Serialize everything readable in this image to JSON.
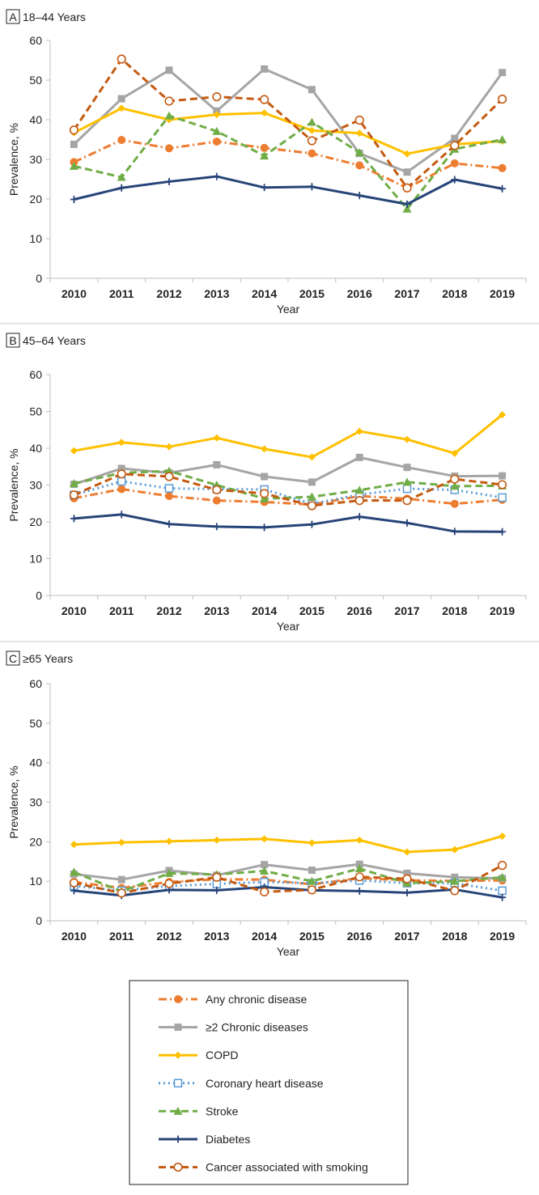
{
  "chart_data": [
    {
      "type": "line",
      "panel_letter": "A",
      "title": "18–44 Years",
      "xlabel": "Year",
      "ylabel": "Prevalence, %",
      "ylim": [
        0,
        60
      ],
      "yticks": [
        0,
        10,
        20,
        30,
        40,
        50,
        60
      ],
      "grid": false,
      "categories": [
        "2010",
        "2011",
        "2012",
        "2013",
        "2014",
        "2015",
        "2016",
        "2017",
        "2018",
        "2019"
      ],
      "series": [
        {
          "key": "any",
          "name": "Any chronic disease",
          "values": [
            29.3,
            34.9,
            32.8,
            34.5,
            32.9,
            31.5,
            28.5,
            22.8,
            29.0,
            27.8
          ]
        },
        {
          "key": "two",
          "name": "≥2 Chronic diseases",
          "values": [
            33.8,
            45.3,
            52.5,
            42.2,
            52.8,
            47.6,
            31.5,
            26.8,
            35.3,
            51.9
          ]
        },
        {
          "key": "copd",
          "name": "COPD",
          "values": [
            36.7,
            42.9,
            40.0,
            41.3,
            41.7,
            37.3,
            36.6,
            31.4,
            33.8,
            34.6
          ]
        },
        {
          "key": "stroke",
          "name": "Stroke",
          "values": [
            28.3,
            25.5,
            41.0,
            37.1,
            30.9,
            39.4,
            31.7,
            17.5,
            32.6,
            35.0
          ]
        },
        {
          "key": "diabetes",
          "name": "Diabetes",
          "values": [
            19.9,
            22.8,
            24.4,
            25.7,
            22.9,
            23.1,
            20.9,
            18.7,
            24.9,
            22.6
          ]
        },
        {
          "key": "cancer",
          "name": "Cancer associated with smoking",
          "values": [
            37.4,
            55.3,
            44.7,
            45.8,
            45.1,
            34.7,
            39.9,
            22.8,
            33.5,
            45.2
          ]
        }
      ]
    },
    {
      "type": "line",
      "panel_letter": "B",
      "title": "45–64 Years",
      "xlabel": "Year",
      "ylabel": "Prevalence, %",
      "ylim": [
        0,
        60
      ],
      "yticks": [
        0,
        10,
        20,
        30,
        40,
        50,
        60
      ],
      "grid": false,
      "categories": [
        "2010",
        "2011",
        "2012",
        "2013",
        "2014",
        "2015",
        "2016",
        "2017",
        "2018",
        "2019"
      ],
      "series": [
        {
          "key": "any",
          "name": "Any chronic disease",
          "values": [
            26.4,
            28.9,
            27.0,
            25.8,
            25.4,
            24.7,
            27.0,
            26.3,
            24.9,
            26.0
          ]
        },
        {
          "key": "two",
          "name": "≥2 Chronic diseases",
          "values": [
            30.2,
            34.5,
            33.3,
            35.5,
            32.3,
            30.8,
            37.5,
            34.8,
            32.4,
            32.5
          ]
        },
        {
          "key": "copd",
          "name": "COPD",
          "values": [
            39.3,
            41.6,
            40.4,
            42.8,
            39.8,
            37.6,
            44.6,
            42.4,
            38.6,
            49.1
          ]
        },
        {
          "key": "chd",
          "name": "Coronary heart disease",
          "values": [
            27.3,
            31.0,
            29.1,
            28.9,
            28.8,
            24.9,
            27.4,
            29.0,
            28.7,
            26.6
          ]
        },
        {
          "key": "stroke",
          "name": "Stroke",
          "values": [
            30.4,
            33.3,
            33.8,
            30.0,
            26.3,
            26.8,
            28.6,
            30.8,
            29.7,
            29.8
          ]
        },
        {
          "key": "diabetes",
          "name": "Diabetes",
          "values": [
            20.9,
            22.0,
            19.4,
            18.7,
            18.5,
            19.3,
            21.4,
            19.7,
            17.4,
            17.3
          ]
        },
        {
          "key": "cancer",
          "name": "Cancer associated with smoking",
          "values": [
            27.3,
            33.0,
            32.3,
            28.7,
            27.7,
            24.4,
            25.8,
            25.8,
            31.6,
            30.1
          ]
        }
      ]
    },
    {
      "type": "line",
      "panel_letter": "C",
      "title": "≥65 Years",
      "xlabel": "Year",
      "ylabel": "Prevalence, %",
      "ylim": [
        0,
        60
      ],
      "yticks": [
        0,
        10,
        20,
        30,
        40,
        50,
        60
      ],
      "grid": false,
      "categories": [
        "2010",
        "2011",
        "2012",
        "2013",
        "2014",
        "2015",
        "2016",
        "2017",
        "2018",
        "2019"
      ],
      "series": [
        {
          "key": "any",
          "name": "Any chronic disease",
          "values": [
            9.8,
            8.3,
            9.8,
            10.5,
            10.4,
            9.2,
            10.8,
            10.2,
            10.1,
            10.2
          ]
        },
        {
          "key": "two",
          "name": "≥2 Chronic diseases",
          "values": [
            11.8,
            10.4,
            12.7,
            11.5,
            14.2,
            12.8,
            14.3,
            12.0,
            11.0,
            10.7
          ]
        },
        {
          "key": "copd",
          "name": "COPD",
          "values": [
            19.3,
            19.8,
            20.1,
            20.4,
            20.7,
            19.7,
            20.4,
            17.4,
            18.0,
            21.4
          ]
        },
        {
          "key": "chd",
          "name": "Coronary heart disease",
          "values": [
            8.8,
            7.6,
            8.8,
            9.3,
            9.8,
            9.5,
            10.2,
            9.5,
            9.5,
            7.6
          ]
        },
        {
          "key": "stroke",
          "name": "Stroke",
          "values": [
            12.3,
            7.4,
            12.0,
            11.7,
            12.6,
            10.0,
            13.2,
            9.5,
            10.0,
            11.0
          ]
        },
        {
          "key": "diabetes",
          "name": "Diabetes",
          "values": [
            7.6,
            6.4,
            7.8,
            7.7,
            8.5,
            7.7,
            7.5,
            7.1,
            7.9,
            5.9
          ]
        },
        {
          "key": "cancer",
          "name": "Cancer associated with smoking",
          "values": [
            9.6,
            7.0,
            9.4,
            11.0,
            7.3,
            7.8,
            11.1,
            10.6,
            7.6,
            14.0
          ]
        }
      ]
    }
  ],
  "legend": {
    "items": [
      {
        "key": "any",
        "label": "Any chronic disease"
      },
      {
        "key": "two",
        "label": "≥2 Chronic diseases"
      },
      {
        "key": "copd",
        "label": "COPD"
      },
      {
        "key": "chd",
        "label": "Coronary heart disease"
      },
      {
        "key": "stroke",
        "label": "Stroke"
      },
      {
        "key": "diabetes",
        "label": "Diabetes"
      },
      {
        "key": "cancer",
        "label": "Cancer associated with smoking"
      }
    ]
  },
  "styles": {
    "any": {
      "color": "#ED7D31",
      "dash": "dashdot",
      "marker": "circle-filled"
    },
    "two": {
      "color": "#A5A5A5",
      "dash": "solid",
      "marker": "square-filled"
    },
    "copd": {
      "color": "#FFC000",
      "dash": "solid",
      "marker": "diamond-filled"
    },
    "chd": {
      "color": "#5B9BD5",
      "dash": "dot",
      "marker": "square-open"
    },
    "stroke": {
      "color": "#70AD47",
      "dash": "dash",
      "marker": "triangle-filled"
    },
    "diabetes": {
      "color": "#264478",
      "dash": "solid",
      "marker": "plus"
    },
    "cancer": {
      "color": "#C55A11",
      "dash": "dash",
      "marker": "circle-open"
    }
  }
}
